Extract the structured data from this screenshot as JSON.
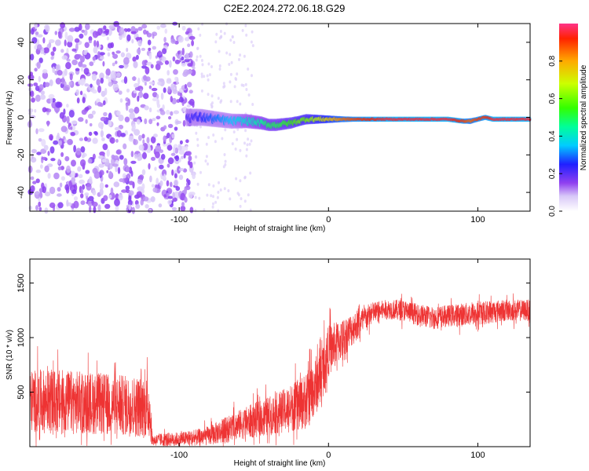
{
  "title": "C2E2.2024.272.06.18.G29",
  "chart_data": [
    {
      "type": "heatmap",
      "xlabel": "Height of straight line (km)",
      "ylabel": "Frequency (Hz)",
      "xlim": [
        -200,
        135
      ],
      "ylim": [
        -50,
        50
      ],
      "xticks": [
        -100,
        0,
        100
      ],
      "yticks": [
        -40,
        -20,
        0,
        20,
        40
      ],
      "colorbar": {
        "label": "Normalized spectral amplitude",
        "range": [
          0,
          1
        ],
        "ticks": [
          0.0,
          0.2,
          0.4,
          0.6,
          0.8
        ]
      },
      "noise_region_x": [
        -200,
        -90
      ],
      "signal_track": {
        "x": [
          -95,
          -85,
          -75,
          -65,
          -55,
          -45,
          -40,
          -35,
          -25,
          -20,
          -15,
          -10,
          -5,
          0,
          10,
          20,
          40,
          60,
          80,
          90,
          95,
          100,
          105,
          110,
          120,
          135
        ],
        "freq": [
          0,
          0,
          -1,
          -2,
          -2,
          -3,
          -4,
          -4,
          -3,
          -2,
          -1,
          -1,
          -1,
          -1,
          -1,
          -1,
          -1,
          -1,
          -1,
          -2,
          -2,
          -1,
          0,
          -1,
          -1,
          -1
        ],
        "amplitude": [
          0.2,
          0.25,
          0.3,
          0.35,
          0.4,
          0.45,
          0.5,
          0.5,
          0.55,
          0.6,
          0.6,
          0.65,
          0.7,
          0.75,
          0.85,
          0.9,
          0.95,
          0.95,
          0.95,
          0.9,
          0.85,
          0.9,
          0.9,
          0.95,
          0.95,
          0.95
        ]
      }
    },
    {
      "type": "line",
      "xlabel": "Height of straight line (km)",
      "ylabel": "SNR (10 * v/v)",
      "xlim": [
        -200,
        135
      ],
      "ylim": [
        0,
        1720
      ],
      "xticks": [
        -100,
        0,
        100
      ],
      "yticks": [
        500,
        1000,
        1500
      ],
      "color": "#ee3333",
      "envelope": {
        "x": [
          -200,
          -180,
          -160,
          -140,
          -120,
          -118,
          -116,
          -110,
          -100,
          -90,
          -80,
          -70,
          -60,
          -50,
          -40,
          -30,
          -20,
          -14,
          -5,
          0,
          10,
          20,
          30,
          40,
          50,
          60,
          70,
          80,
          90,
          100,
          110,
          120,
          135
        ],
        "mean": [
          420,
          410,
          400,
          380,
          360,
          60,
          60,
          65,
          70,
          80,
          100,
          150,
          200,
          240,
          280,
          330,
          380,
          430,
          650,
          880,
          1000,
          1130,
          1230,
          1260,
          1250,
          1210,
          1180,
          1200,
          1210,
          1220,
          1240,
          1250,
          1250
        ],
        "spread": [
          320,
          330,
          320,
          310,
          320,
          60,
          60,
          70,
          70,
          80,
          100,
          130,
          150,
          180,
          200,
          220,
          260,
          300,
          300,
          260,
          200,
          150,
          110,
          100,
          110,
          110,
          120,
          110,
          120,
          120,
          120,
          110,
          110
        ]
      }
    }
  ]
}
